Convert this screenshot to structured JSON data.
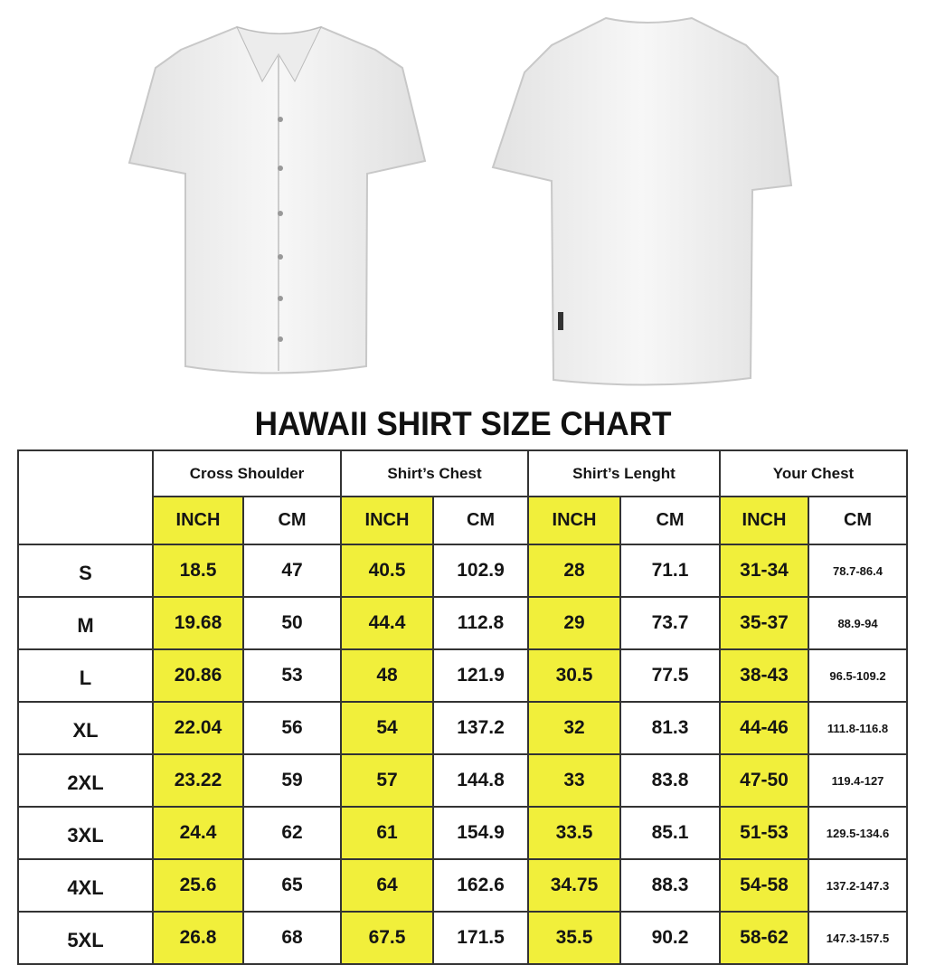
{
  "title": "HAWAII SHIRT SIZE CHART",
  "colors": {
    "highlight": "#f1ef3b",
    "border": "#333333",
    "shirt": "#f4f4f4"
  },
  "images": [
    "shirt-front",
    "shirt-back"
  ],
  "table": {
    "groups": [
      "Cross Shoulder",
      "Shirt’s Chest",
      "Shirt’s Lenght",
      "Your Chest"
    ],
    "units": [
      "INCH",
      "CM"
    ],
    "rows": [
      {
        "size": "S",
        "values": [
          "18.5",
          "47",
          "40.5",
          "102.9",
          "28",
          "71.1",
          "31-34",
          "78.7-86.4"
        ]
      },
      {
        "size": "M",
        "values": [
          "19.68",
          "50",
          "44.4",
          "112.8",
          "29",
          "73.7",
          "35-37",
          "88.9-94"
        ]
      },
      {
        "size": "L",
        "values": [
          "20.86",
          "53",
          "48",
          "121.9",
          "30.5",
          "77.5",
          "38-43",
          "96.5-109.2"
        ]
      },
      {
        "size": "XL",
        "values": [
          "22.04",
          "56",
          "54",
          "137.2",
          "32",
          "81.3",
          "44-46",
          "111.8-116.8"
        ]
      },
      {
        "size": "2XL",
        "values": [
          "23.22",
          "59",
          "57",
          "144.8",
          "33",
          "83.8",
          "47-50",
          "119.4-127"
        ]
      },
      {
        "size": "3XL",
        "values": [
          "24.4",
          "62",
          "61",
          "154.9",
          "33.5",
          "85.1",
          "51-53",
          "129.5-134.6"
        ]
      },
      {
        "size": "4XL",
        "values": [
          "25.6",
          "65",
          "64",
          "162.6",
          "34.75",
          "88.3",
          "54-58",
          "137.2-147.3"
        ]
      },
      {
        "size": "5XL",
        "values": [
          "26.8",
          "68",
          "67.5",
          "171.5",
          "35.5",
          "90.2",
          "58-62",
          "147.3-157.5"
        ]
      }
    ]
  }
}
